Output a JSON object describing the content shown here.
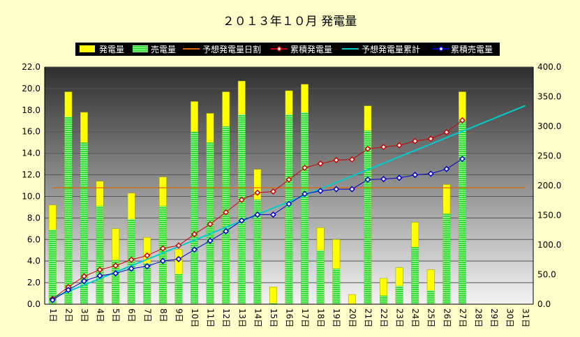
{
  "chart_data": {
    "type": "bar",
    "title": "２０１３年１０月 発電量",
    "categories": [
      "1日",
      "2日",
      "3日",
      "4日",
      "5日",
      "6日",
      "7日",
      "8日",
      "9日",
      "10日",
      "11日",
      "12日",
      "13日",
      "14日",
      "15日",
      "16日",
      "17日",
      "18日",
      "19日",
      "20日",
      "21日",
      "22日",
      "23日",
      "24日",
      "25日",
      "26日",
      "27日",
      "28日",
      "29日",
      "30日",
      "31日"
    ],
    "y_left": {
      "min": 0,
      "max": 22,
      "step": 2,
      "tick_labels": [
        "0.0",
        "2.0",
        "4.0",
        "6.0",
        "8.0",
        "10.0",
        "12.0",
        "14.0",
        "16.0",
        "18.0",
        "20.0",
        "22.0"
      ]
    },
    "y_right": {
      "min": 0,
      "max": 400,
      "step": 50,
      "tick_labels": [
        "0.0",
        "50.0",
        "100.0",
        "150.0",
        "200.0",
        "250.0",
        "300.0",
        "350.0",
        "400.0"
      ]
    },
    "legend_position": "top",
    "series": [
      {
        "name": "発電量",
        "type": "bar",
        "axis": "left",
        "color": "#ffff00",
        "values": [
          9.2,
          19.7,
          17.8,
          11.4,
          7.0,
          10.3,
          6.2,
          11.8,
          5.1,
          18.8,
          17.7,
          19.7,
          20.7,
          12.5,
          1.6,
          19.8,
          20.4,
          7.1,
          6.0,
          0.9,
          18.4,
          2.4,
          3.4,
          7.6,
          3.2,
          11.1,
          19.7,
          null,
          null,
          null,
          null
        ]
      },
      {
        "name": "売電量",
        "type": "bar",
        "axis": "left",
        "color": "#33cc33",
        "values": [
          6.9,
          17.4,
          15.0,
          9.1,
          4.1,
          7.9,
          3.8,
          9.1,
          2.8,
          16.0,
          15.0,
          16.5,
          17.6,
          9.7,
          0.1,
          17.6,
          17.8,
          5.0,
          3.3,
          0.0,
          16.1,
          0.8,
          1.7,
          5.3,
          1.3,
          8.4,
          17.0,
          null,
          null,
          null,
          null
        ]
      },
      {
        "name": "予想発電量日割",
        "type": "line",
        "axis": "left",
        "color": "#dd6600",
        "values": [
          10.8,
          10.8,
          10.8,
          10.8,
          10.8,
          10.8,
          10.8,
          10.8,
          10.8,
          10.8,
          10.8,
          10.8,
          10.8,
          10.8,
          10.8,
          10.8,
          10.8,
          10.8,
          10.8,
          10.8,
          10.8,
          10.8,
          10.8,
          10.8,
          10.8,
          10.8,
          10.8,
          10.8,
          10.8,
          10.8,
          10.8
        ]
      },
      {
        "name": "累積発電量",
        "type": "line",
        "axis": "right",
        "color": "#cc0000",
        "values": [
          9,
          29,
          47,
          58,
          65,
          75,
          82,
          94,
          99,
          118,
          135,
          155,
          176,
          188,
          190,
          210,
          230,
          237,
          243,
          244,
          262,
          265,
          268,
          275,
          279,
          290,
          310,
          null,
          null,
          null,
          null
        ]
      },
      {
        "name": "予想発電量累計",
        "type": "line",
        "axis": "right",
        "color": "#00cccc",
        "values": [
          10.8,
          21.6,
          32.4,
          43.2,
          54,
          64.8,
          75.6,
          86.4,
          97.2,
          108,
          118.8,
          129.6,
          140.4,
          151.2,
          162,
          172.8,
          183.6,
          194.4,
          205.2,
          216,
          226.8,
          237.6,
          248.4,
          259.2,
          270,
          280.8,
          291.6,
          302.4,
          313.2,
          324,
          334.8
        ]
      },
      {
        "name": "累積売電量",
        "type": "line",
        "axis": "right",
        "color": "#0000cc",
        "values": [
          7,
          24,
          39,
          48,
          52,
          60,
          64,
          73,
          76,
          92,
          107,
          123,
          141,
          151,
          151,
          169,
          186,
          191,
          194,
          194,
          210,
          211,
          213,
          218,
          220,
          228,
          245,
          null,
          null,
          null,
          null
        ]
      }
    ]
  }
}
